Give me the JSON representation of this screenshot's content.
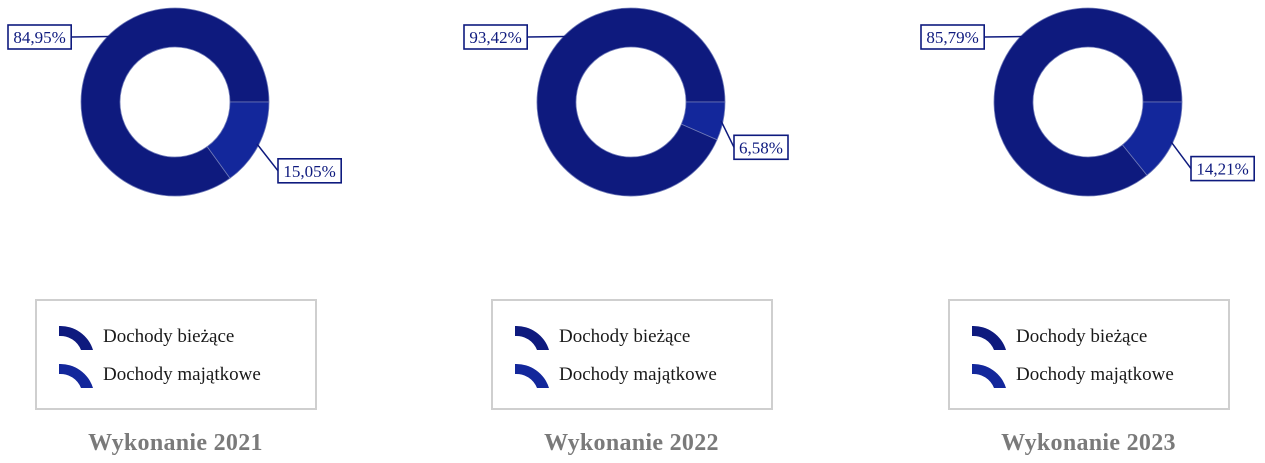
{
  "colors": {
    "series_0": "#0e1a7e",
    "series_1": "#13279b",
    "leader": "#0e1a7e",
    "legend_border": "#cfcfcf",
    "title": "#7a7a7a"
  },
  "chart_data": [
    {
      "type": "pie",
      "variant": "donut",
      "title": "Wykonanie 2021",
      "categories": [
        "Dochody bieżące",
        "Dochody majątkowe"
      ],
      "values": [
        84.95,
        15.05
      ],
      "labels": [
        "84,95%",
        "15,05%"
      ],
      "legend": {
        "placement": "bottom",
        "entries": [
          "Dochody bieżące",
          "Dochody majątkowe"
        ]
      }
    },
    {
      "type": "pie",
      "variant": "donut",
      "title": "Wykonanie 2022",
      "categories": [
        "Dochody bieżące",
        "Dochody majątkowe"
      ],
      "values": [
        93.42,
        6.58
      ],
      "labels": [
        "93,42%",
        "6,58%"
      ],
      "legend": {
        "placement": "bottom",
        "entries": [
          "Dochody bieżące",
          "Dochody majątkowe"
        ]
      }
    },
    {
      "type": "pie",
      "variant": "donut",
      "title": "Wykonanie 2023",
      "categories": [
        "Dochody bieżące",
        "Dochody majątkowe"
      ],
      "values": [
        85.79,
        14.21
      ],
      "labels": [
        "85,79%",
        "14,21%"
      ],
      "legend": {
        "placement": "bottom",
        "entries": [
          "Dochody bieżące",
          "Dochody majątkowe"
        ]
      }
    }
  ]
}
